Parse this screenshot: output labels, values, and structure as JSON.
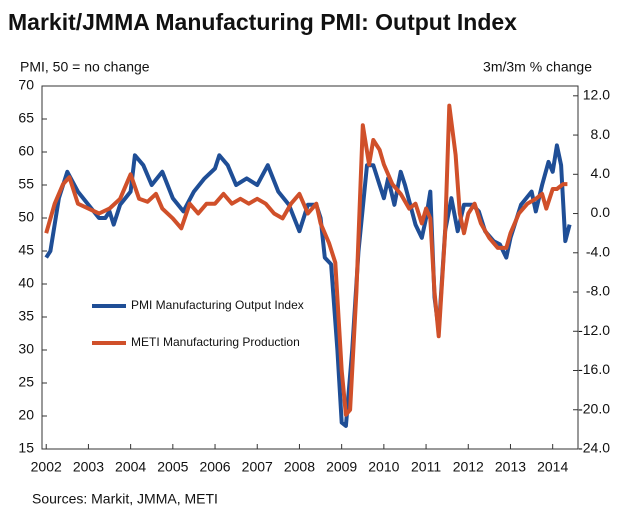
{
  "chart_data": {
    "type": "line",
    "title": "Markit/JMMA Manufacturing PMI: Output Index",
    "y_label": "PMI, 50 = no change",
    "y2_label": "3m/3m % change",
    "source": "Sources: Markit, JMMA, METI",
    "xlim": [
      2001.9,
      2014.6
    ],
    "xticks": [
      2002,
      2003,
      2004,
      2005,
      2006,
      2007,
      2008,
      2009,
      2010,
      2011,
      2012,
      2013,
      2014
    ],
    "ylim": [
      15,
      70
    ],
    "yticks": [
      15,
      20,
      25,
      30,
      35,
      40,
      45,
      50,
      55,
      60,
      65,
      70
    ],
    "y2lim": [
      -24,
      13
    ],
    "y2ticks": [
      {
        "value": -24,
        "label": "-24.0"
      },
      {
        "value": -20,
        "label": "-20.0"
      },
      {
        "value": -16,
        "label": "-16.0"
      },
      {
        "value": -12,
        "label": "-12.0"
      },
      {
        "value": -8,
        "label": "-8.0"
      },
      {
        "value": -4,
        "label": "-4.0"
      },
      {
        "value": 0,
        "label": "0.0"
      },
      {
        "value": 4,
        "label": "4.0"
      },
      {
        "value": 8,
        "label": "8.0"
      },
      {
        "value": 12,
        "label": "12.0"
      }
    ],
    "grid": false,
    "series": [
      {
        "name": "PMI Manufacturing Output Index",
        "color": "#1f4e96",
        "x": [
          2002.0,
          2002.1,
          2002.3,
          2002.5,
          2002.75,
          2003.0,
          2003.25,
          2003.4,
          2003.5,
          2003.6,
          2003.75,
          2004.0,
          2004.1,
          2004.3,
          2004.5,
          2004.75,
          2005.0,
          2005.25,
          2005.5,
          2005.75,
          2006.0,
          2006.1,
          2006.3,
          2006.5,
          2006.75,
          2007.0,
          2007.25,
          2007.5,
          2007.75,
          2008.0,
          2008.2,
          2008.4,
          2008.5,
          2008.6,
          2008.75,
          2008.9,
          2009.0,
          2009.1,
          2009.25,
          2009.4,
          2009.6,
          2009.75,
          2009.9,
          2010.0,
          2010.1,
          2010.25,
          2010.4,
          2010.5,
          2010.75,
          2010.9,
          2011.0,
          2011.1,
          2011.2,
          2011.3,
          2011.45,
          2011.6,
          2011.75,
          2011.9,
          2012.1,
          2012.25,
          2012.4,
          2012.6,
          2012.75,
          2012.9,
          2013.0,
          2013.25,
          2013.5,
          2013.6,
          2013.75,
          2013.9,
          2014.0,
          2014.1,
          2014.2,
          2014.3,
          2014.4
        ],
        "values": [
          44,
          45,
          53,
          57,
          54,
          52,
          50,
          50,
          51,
          49,
          52,
          54,
          59.5,
          58,
          55,
          57,
          53,
          51,
          54,
          56,
          57.5,
          59.5,
          58,
          55,
          56,
          55,
          58,
          54,
          52,
          48,
          52,
          52,
          50,
          44,
          43,
          30,
          19,
          18.5,
          30,
          45,
          58,
          58,
          55,
          53,
          56,
          52,
          57,
          55,
          49,
          47,
          50,
          54,
          38,
          33,
          48,
          53,
          48,
          52,
          52,
          51,
          48,
          46.5,
          46,
          44,
          47,
          52,
          54,
          51,
          55,
          58.5,
          57,
          61,
          58,
          46.5,
          49
        ]
      },
      {
        "name": "METI Manufacturing Production",
        "color": "#d0502a",
        "axis": "y2",
        "x": [
          2002.0,
          2002.2,
          2002.4,
          2002.55,
          2002.75,
          2003.0,
          2003.25,
          2003.5,
          2003.75,
          2004.0,
          2004.2,
          2004.4,
          2004.6,
          2004.75,
          2005.0,
          2005.2,
          2005.4,
          2005.6,
          2005.8,
          2006.0,
          2006.2,
          2006.4,
          2006.6,
          2006.8,
          2007.0,
          2007.2,
          2007.4,
          2007.6,
          2007.8,
          2008.0,
          2008.2,
          2008.4,
          2008.5,
          2008.7,
          2008.85,
          2009.0,
          2009.1,
          2009.2,
          2009.35,
          2009.5,
          2009.65,
          2009.75,
          2009.9,
          2010.0,
          2010.2,
          2010.4,
          2010.6,
          2010.75,
          2010.9,
          2011.0,
          2011.1,
          2011.2,
          2011.3,
          2011.45,
          2011.55,
          2011.7,
          2011.8,
          2011.9,
          2012.0,
          2012.15,
          2012.3,
          2012.5,
          2012.7,
          2012.9,
          2013.0,
          2013.2,
          2013.4,
          2013.6,
          2013.75,
          2013.85,
          2014.0,
          2014.1,
          2014.25,
          2014.35
        ],
        "values": [
          -2,
          1,
          3,
          3.7,
          1,
          0.5,
          0,
          0.5,
          1.5,
          4,
          1.5,
          1.2,
          2,
          0.5,
          -0.5,
          -1.5,
          1,
          0,
          1,
          1,
          2,
          1,
          1.5,
          1,
          1.5,
          1,
          0,
          -0.5,
          1,
          2,
          0,
          1,
          -1,
          -3,
          -5,
          -16,
          -20.5,
          -20,
          -8,
          9,
          5,
          7.5,
          6.5,
          5,
          3,
          2,
          0.5,
          1,
          -1,
          0.5,
          -0.5,
          -8,
          -12.5,
          -2,
          11,
          6,
          0,
          -2,
          0,
          1,
          -1,
          -2.5,
          -3.5,
          -3.5,
          -2,
          0,
          1,
          1.5,
          2,
          0.5,
          2.5,
          2.5,
          3,
          3
        ]
      }
    ]
  }
}
